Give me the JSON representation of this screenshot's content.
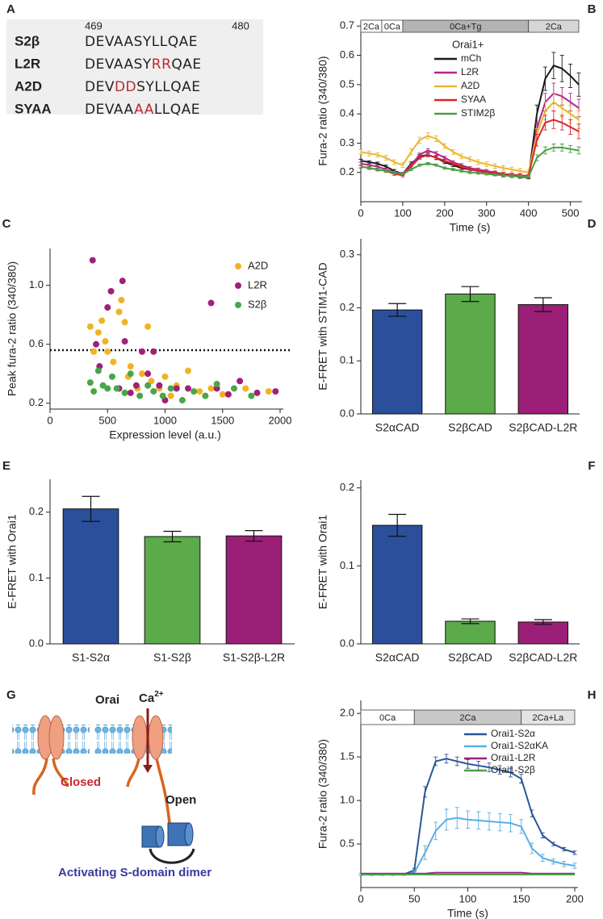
{
  "panel_a": {
    "panel_label": "A",
    "positions": [
      "469",
      "480"
    ],
    "rows": [
      {
        "name": "S2β",
        "segments": [
          {
            "text": "DEVAASYLLQAE"
          }
        ]
      },
      {
        "name": "L2R",
        "segments": [
          {
            "text": "DEVAASY"
          },
          {
            "text": "RR",
            "color": "#c0272d"
          },
          {
            "text": "QAE"
          }
        ]
      },
      {
        "name": "A2D",
        "segments": [
          {
            "text": "DEV"
          },
          {
            "text": "DD",
            "color": "#c0272d"
          },
          {
            "text": "SYLLQAE"
          }
        ]
      },
      {
        "name": "SYAA",
        "segments": [
          {
            "text": "DEVAA"
          },
          {
            "text": "AA",
            "color": "#c0272d"
          },
          {
            "text": "LLQAE"
          }
        ]
      }
    ]
  },
  "chart_data": [
    {
      "type": "line",
      "panel_label": "B",
      "xlabel": "Time (s)",
      "ylabel": "Fura-2 ratio (340/380)",
      "xlim": [
        0,
        520
      ],
      "xticks": [
        0,
        100,
        200,
        300,
        400,
        500
      ],
      "ylim": [
        0.1,
        0.72
      ],
      "yticks": [
        0.2,
        0.3,
        0.4,
        0.5,
        0.6,
        0.7
      ],
      "phases": [
        {
          "label": "2Ca",
          "start": 0,
          "end": 50,
          "color": "#ffffff"
        },
        {
          "label": "0Ca",
          "start": 50,
          "end": 100,
          "color": "#ffffff"
        },
        {
          "label": "0Ca+Tg",
          "start": 100,
          "end": 400,
          "color": "#b3b3b3"
        },
        {
          "label": "2Ca",
          "start": 400,
          "end": 520,
          "color": "#d6d6d6"
        }
      ],
      "legend": "upper center",
      "legend_title": "Orai1+",
      "x": [
        0,
        20,
        40,
        60,
        80,
        100,
        120,
        140,
        160,
        180,
        200,
        220,
        240,
        260,
        280,
        300,
        320,
        340,
        360,
        380,
        400,
        420,
        440,
        460,
        480,
        500,
        520
      ],
      "series": [
        {
          "name": "mCh",
          "color": "#1a1a1a",
          "values": [
            0.24,
            0.235,
            0.23,
            0.22,
            0.205,
            0.195,
            0.23,
            0.255,
            0.26,
            0.25,
            0.235,
            0.225,
            0.215,
            0.21,
            0.205,
            0.2,
            0.195,
            0.19,
            0.188,
            0.185,
            0.183,
            0.4,
            0.52,
            0.565,
            0.555,
            0.53,
            0.5
          ],
          "errors": [
            0.005,
            0.005,
            0.005,
            0.005,
            0.005,
            0.005,
            0.006,
            0.006,
            0.006,
            0.006,
            0.005,
            0.005,
            0.005,
            0.005,
            0.005,
            0.005,
            0.005,
            0.005,
            0.005,
            0.005,
            0.005,
            0.03,
            0.04,
            0.045,
            0.045,
            0.04,
            0.04
          ]
        },
        {
          "name": "L2R",
          "color": "#b0288a",
          "values": [
            0.23,
            0.225,
            0.22,
            0.21,
            0.2,
            0.195,
            0.225,
            0.26,
            0.275,
            0.265,
            0.25,
            0.235,
            0.225,
            0.215,
            0.21,
            0.205,
            0.2,
            0.195,
            0.192,
            0.19,
            0.188,
            0.35,
            0.44,
            0.47,
            0.46,
            0.44,
            0.42
          ],
          "errors": [
            0.005,
            0.005,
            0.005,
            0.005,
            0.005,
            0.005,
            0.006,
            0.006,
            0.006,
            0.006,
            0.005,
            0.005,
            0.005,
            0.005,
            0.005,
            0.005,
            0.005,
            0.005,
            0.005,
            0.005,
            0.005,
            0.02,
            0.03,
            0.035,
            0.03,
            0.03,
            0.03
          ]
        },
        {
          "name": "A2D",
          "color": "#eab52e",
          "values": [
            0.27,
            0.265,
            0.26,
            0.25,
            0.235,
            0.225,
            0.27,
            0.31,
            0.325,
            0.315,
            0.29,
            0.27,
            0.255,
            0.245,
            0.235,
            0.228,
            0.222,
            0.215,
            0.21,
            0.205,
            0.2,
            0.33,
            0.41,
            0.44,
            0.42,
            0.4,
            0.38
          ],
          "errors": [
            0.008,
            0.008,
            0.008,
            0.008,
            0.008,
            0.008,
            0.01,
            0.01,
            0.01,
            0.01,
            0.008,
            0.008,
            0.008,
            0.008,
            0.008,
            0.008,
            0.008,
            0.008,
            0.008,
            0.008,
            0.008,
            0.02,
            0.03,
            0.03,
            0.03,
            0.03,
            0.03
          ]
        },
        {
          "name": "SYAA",
          "color": "#d8262e",
          "values": [
            0.22,
            0.215,
            0.21,
            0.205,
            0.195,
            0.19,
            0.22,
            0.25,
            0.26,
            0.25,
            0.24,
            0.23,
            0.22,
            0.21,
            0.205,
            0.2,
            0.198,
            0.195,
            0.192,
            0.19,
            0.188,
            0.31,
            0.37,
            0.38,
            0.37,
            0.355,
            0.34
          ],
          "errors": [
            0.005,
            0.005,
            0.005,
            0.005,
            0.005,
            0.005,
            0.005,
            0.005,
            0.005,
            0.005,
            0.005,
            0.005,
            0.005,
            0.005,
            0.005,
            0.005,
            0.005,
            0.005,
            0.005,
            0.005,
            0.005,
            0.02,
            0.025,
            0.03,
            0.025,
            0.025,
            0.025
          ]
        },
        {
          "name": "STIM2β",
          "color": "#4c9e47",
          "values": [
            0.22,
            0.215,
            0.21,
            0.205,
            0.2,
            0.195,
            0.21,
            0.225,
            0.23,
            0.225,
            0.215,
            0.21,
            0.205,
            0.2,
            0.198,
            0.195,
            0.192,
            0.19,
            0.188,
            0.186,
            0.185,
            0.25,
            0.275,
            0.285,
            0.285,
            0.28,
            0.275
          ],
          "errors": [
            0.004,
            0.004,
            0.004,
            0.004,
            0.004,
            0.004,
            0.004,
            0.004,
            0.004,
            0.004,
            0.004,
            0.004,
            0.004,
            0.004,
            0.004,
            0.004,
            0.004,
            0.004,
            0.004,
            0.004,
            0.004,
            0.01,
            0.012,
            0.012,
            0.012,
            0.012,
            0.012
          ]
        }
      ]
    },
    {
      "type": "scatter",
      "panel_label": "C",
      "xlabel": "Expression level (a.u.)",
      "ylabel": "Peak fura-2 ratio (340/380)",
      "xlim": [
        0,
        2000
      ],
      "xticks": [
        0,
        500,
        1000,
        1500,
        2000
      ],
      "ylim": [
        0.16,
        1.25
      ],
      "yticks": [
        0.2,
        0.6,
        {
          "value": 1,
          "label": "1.0"
        }
      ],
      "threshold": 0.56,
      "legend": "upper right",
      "series": [
        {
          "name": "A2D",
          "color": "#f0b323",
          "x": [
            350,
            380,
            420,
            450,
            480,
            500,
            550,
            600,
            620,
            650,
            680,
            700,
            760,
            800,
            850,
            880,
            950,
            1000,
            1050,
            1100,
            1200,
            1300,
            1400,
            1500,
            1700,
            1900
          ],
          "values": [
            0.72,
            0.55,
            0.68,
            0.76,
            0.62,
            0.55,
            0.48,
            0.82,
            0.9,
            0.75,
            0.38,
            0.45,
            0.3,
            0.4,
            0.72,
            0.35,
            0.3,
            0.38,
            0.25,
            0.32,
            0.42,
            0.28,
            0.3,
            0.26,
            0.3,
            0.28
          ]
        },
        {
          "name": "L2R",
          "color": "#a0207a",
          "x": [
            370,
            400,
            430,
            500,
            530,
            600,
            630,
            650,
            700,
            750,
            800,
            850,
            900,
            950,
            1000,
            1100,
            1200,
            1400,
            1450,
            1550,
            1650,
            1800,
            1960
          ],
          "values": [
            1.17,
            0.6,
            0.45,
            0.85,
            0.96,
            0.3,
            1.03,
            0.62,
            0.27,
            0.32,
            0.55,
            0.4,
            0.55,
            0.32,
            0.22,
            0.3,
            0.3,
            0.88,
            0.3,
            0.26,
            0.35,
            0.27,
            0.28
          ]
        },
        {
          "name": "S2β",
          "color": "#4aa54a",
          "x": [
            350,
            380,
            420,
            460,
            500,
            540,
            580,
            650,
            700,
            780,
            850,
            900,
            980,
            1050,
            1150,
            1250,
            1350,
            1450,
            1600,
            1750
          ],
          "values": [
            0.34,
            0.28,
            0.42,
            0.32,
            0.3,
            0.38,
            0.3,
            0.27,
            0.4,
            0.25,
            0.32,
            0.28,
            0.25,
            0.3,
            0.22,
            0.28,
            0.25,
            0.33,
            0.3,
            0.25
          ]
        }
      ]
    },
    {
      "type": "bar",
      "panel_label": "D",
      "ylabel": "E-FRET with STIM1-CAD",
      "categories": [
        "S2αCAD",
        "S2βCAD",
        "S2βCAD-L2R"
      ],
      "values": [
        0.196,
        0.226,
        0.206
      ],
      "errors": [
        0.012,
        0.014,
        0.013
      ],
      "colors": [
        "#2b4f9b",
        "#5bab4a",
        "#9b1f76"
      ],
      "ylim": [
        0,
        0.33
      ],
      "yticks": [
        {
          "value": 0,
          "label": "0.0"
        },
        0.1,
        0.2,
        0.3
      ]
    },
    {
      "type": "bar",
      "panel_label": "E",
      "ylabel": "E-FRET with Orai1",
      "categories": [
        "S1-S2α",
        "S1-S2β",
        "S1-S2β-L2R"
      ],
      "values": [
        0.205,
        0.163,
        0.164
      ],
      "errors": [
        0.019,
        0.008,
        0.008
      ],
      "colors": [
        "#2b4f9b",
        "#5bab4a",
        "#9b1f76"
      ],
      "ylim": [
        0,
        0.25
      ],
      "yticks": [
        {
          "value": 0,
          "label": "0.0"
        },
        0.1,
        0.2
      ]
    },
    {
      "type": "bar",
      "panel_label": "F",
      "ylabel": "E-FRET with Orai1",
      "categories": [
        "S2αCAD",
        "S2βCAD",
        "S2βCAD-L2R"
      ],
      "values": [
        0.152,
        0.029,
        0.028
      ],
      "errors": [
        0.014,
        0.003,
        0.003
      ],
      "colors": [
        "#2b4f9b",
        "#5bab4a",
        "#9b1f76"
      ],
      "ylim": [
        0,
        0.21
      ],
      "yticks": [
        {
          "value": 0,
          "label": "0.0"
        },
        0.1,
        0.2
      ]
    },
    {
      "type": "line",
      "panel_label": "H",
      "xlabel": "Time (s)",
      "ylabel": "Fura-2 ratio (340/380)",
      "xlim": [
        0,
        200
      ],
      "xticks": [
        0,
        50,
        100,
        150,
        200
      ],
      "ylim": [
        0,
        2.15
      ],
      "yticks": [
        0.5,
        {
          "value": 1,
          "label": "1.0"
        },
        1.5,
        {
          "value": 2,
          "label": "2.0"
        }
      ],
      "phases": [
        {
          "label": "0Ca",
          "start": 0,
          "end": 50,
          "color": "#ffffff"
        },
        {
          "label": "2Ca",
          "start": 50,
          "end": 150,
          "color": "#c8c8c8"
        },
        {
          "label": "2Ca+La",
          "start": 150,
          "end": 200,
          "color": "#e4e4e4"
        }
      ],
      "legend": "upper right",
      "x": [
        0,
        10,
        20,
        30,
        40,
        50,
        60,
        70,
        80,
        90,
        100,
        110,
        120,
        130,
        140,
        150,
        160,
        170,
        180,
        190,
        200
      ],
      "series": [
        {
          "name": "Orai1-S2α",
          "color": "#2a5597",
          "values": [
            0.15,
            0.15,
            0.15,
            0.15,
            0.15,
            0.2,
            1.1,
            1.45,
            1.48,
            1.45,
            1.42,
            1.4,
            1.38,
            1.35,
            1.32,
            1.25,
            0.85,
            0.6,
            0.5,
            0.44,
            0.4
          ],
          "errors": [
            0.01,
            0.01,
            0.01,
            0.01,
            0.01,
            0.02,
            0.06,
            0.05,
            0.05,
            0.05,
            0.05,
            0.05,
            0.05,
            0.05,
            0.05,
            0.05,
            0.04,
            0.03,
            0.02,
            0.02,
            0.02
          ]
        },
        {
          "name": "Orai1-S2αKA",
          "color": "#5aaee3",
          "values": [
            0.15,
            0.15,
            0.15,
            0.15,
            0.15,
            0.17,
            0.4,
            0.65,
            0.78,
            0.8,
            0.78,
            0.77,
            0.76,
            0.75,
            0.74,
            0.7,
            0.45,
            0.34,
            0.3,
            0.27,
            0.25
          ],
          "errors": [
            0.01,
            0.01,
            0.01,
            0.01,
            0.01,
            0.02,
            0.08,
            0.1,
            0.12,
            0.12,
            0.1,
            0.1,
            0.1,
            0.1,
            0.1,
            0.08,
            0.06,
            0.04,
            0.03,
            0.03,
            0.03
          ]
        },
        {
          "name": "Orai1-L2R",
          "color": "#a0207a",
          "values": [
            0.16,
            0.16,
            0.16,
            0.16,
            0.16,
            0.16,
            0.16,
            0.17,
            0.17,
            0.17,
            0.17,
            0.17,
            0.17,
            0.17,
            0.17,
            0.17,
            0.16,
            0.16,
            0.16,
            0.16,
            0.16
          ]
        },
        {
          "name": "Orai1-S2β",
          "color": "#4c9e47",
          "values": [
            0.15,
            0.15,
            0.15,
            0.15,
            0.15,
            0.15,
            0.15,
            0.15,
            0.15,
            0.15,
            0.15,
            0.15,
            0.15,
            0.15,
            0.15,
            0.15,
            0.15,
            0.15,
            0.15,
            0.15,
            0.15
          ]
        }
      ]
    }
  ],
  "panel_g": {
    "panel_label": "G",
    "orai": "Orai",
    "ca": {
      "base": "Ca",
      "superscript": "2+"
    },
    "closed": "Closed",
    "open": "Open",
    "dimer": "Activating S-domain dimer"
  }
}
